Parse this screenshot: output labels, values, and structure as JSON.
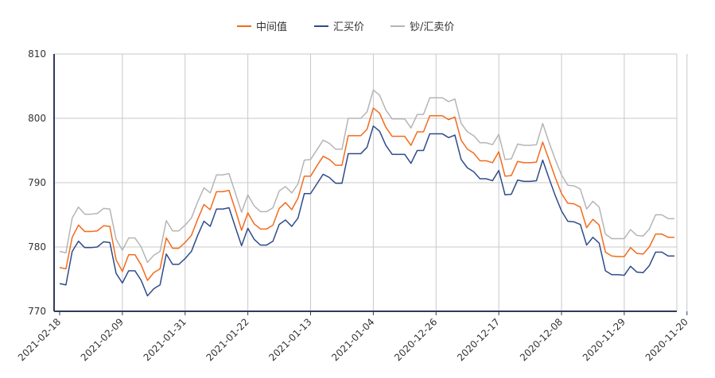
{
  "chart_data": {
    "type": "line",
    "title": "",
    "xlabel": "",
    "ylabel": "",
    "ylim": [
      770,
      810
    ],
    "y_ticks": [
      770,
      780,
      790,
      800,
      810
    ],
    "grid": true,
    "legend_position": "top-center",
    "x_tick_labels": [
      "2021-02-18",
      "2021-02-09",
      "2021-01-31",
      "2021-01-22",
      "2021-01-13",
      "2021-01-04",
      "2020-12-26",
      "2020-12-17",
      "2020-12-08",
      "2020-11-29",
      "2020-11-20"
    ],
    "x_tick_every": 10,
    "series": [
      {
        "name": "中间值",
        "color": "#f26b1d",
        "values": [
          776.8,
          776.6,
          781.5,
          783.4,
          782.4,
          782.4,
          782.5,
          783.3,
          783.2,
          778.0,
          776.2,
          778.8,
          778.8,
          777.2,
          774.8,
          776.0,
          776.6,
          781.4,
          779.8,
          779.8,
          780.7,
          781.8,
          784.3,
          786.6,
          785.8,
          788.6,
          788.6,
          788.8,
          785.8,
          782.6,
          785.3,
          783.6,
          782.8,
          782.8,
          783.4,
          786.0,
          786.9,
          785.8,
          787.6,
          791.0,
          791.0,
          792.6,
          794.1,
          793.6,
          792.7,
          792.7,
          797.3,
          797.3,
          797.3,
          798.3,
          801.6,
          800.8,
          798.6,
          797.2,
          797.2,
          797.2,
          795.8,
          797.9,
          797.9,
          800.4,
          800.4,
          800.4,
          799.8,
          800.2,
          796.6,
          795.2,
          794.6,
          793.4,
          793.4,
          793.1,
          794.8,
          791.0,
          791.1,
          793.3,
          793.1,
          793.1,
          793.2,
          796.3,
          793.6,
          790.8,
          788.3,
          786.8,
          786.7,
          786.2,
          783.0,
          784.3,
          783.4,
          779.2,
          778.6,
          778.5,
          778.5,
          779.9,
          779.0,
          778.9,
          780.0,
          782.0,
          782.0,
          781.5,
          781.5
        ]
      },
      {
        "name": "汇买价",
        "color": "#2f4b8a",
        "values": [
          774.3,
          774.1,
          779.3,
          780.9,
          779.9,
          779.9,
          780.0,
          780.8,
          780.7,
          775.9,
          774.4,
          776.3,
          776.3,
          774.8,
          772.4,
          773.5,
          774.1,
          778.9,
          777.3,
          777.3,
          778.2,
          779.3,
          781.8,
          784.0,
          783.2,
          785.9,
          785.9,
          786.1,
          783.1,
          780.2,
          782.9,
          781.2,
          780.3,
          780.3,
          780.9,
          783.5,
          784.2,
          783.2,
          784.5,
          788.3,
          788.3,
          789.8,
          791.3,
          790.8,
          789.9,
          789.9,
          794.5,
          794.5,
          794.5,
          795.5,
          798.8,
          798.0,
          795.8,
          794.4,
          794.4,
          794.4,
          793.0,
          795.0,
          795.0,
          797.6,
          797.6,
          797.6,
          797.0,
          797.4,
          793.6,
          792.3,
          791.7,
          790.6,
          790.6,
          790.3,
          791.9,
          788.1,
          788.2,
          790.4,
          790.2,
          790.2,
          790.3,
          793.5,
          790.7,
          788.0,
          785.6,
          784.0,
          783.9,
          783.5,
          780.3,
          781.5,
          780.6,
          776.3,
          775.7,
          775.7,
          775.6,
          777.0,
          776.1,
          776.0,
          777.1,
          779.2,
          779.2,
          778.6,
          778.6
        ]
      },
      {
        "name": "钞/汇卖价",
        "color": "#b5b5b5",
        "values": [
          779.3,
          779.1,
          784.5,
          786.2,
          785.1,
          785.1,
          785.2,
          786.0,
          785.9,
          781.2,
          779.5,
          781.4,
          781.4,
          780.0,
          777.6,
          778.7,
          779.3,
          784.1,
          782.5,
          782.5,
          783.4,
          784.5,
          787.0,
          789.2,
          788.4,
          791.2,
          791.2,
          791.4,
          788.4,
          785.4,
          788.1,
          786.4,
          785.5,
          785.5,
          786.1,
          788.7,
          789.4,
          788.4,
          789.8,
          793.5,
          793.6,
          795.1,
          796.6,
          796.1,
          795.2,
          795.2,
          800.0,
          800.0,
          800.0,
          801.0,
          804.4,
          803.6,
          801.3,
          799.9,
          799.9,
          799.9,
          798.5,
          800.6,
          800.6,
          803.2,
          803.2,
          803.2,
          802.6,
          803.0,
          799.2,
          797.9,
          797.3,
          796.2,
          796.2,
          795.9,
          797.5,
          793.6,
          793.7,
          796.0,
          795.8,
          795.8,
          795.9,
          799.2,
          796.3,
          793.6,
          791.2,
          789.6,
          789.5,
          789.0,
          785.9,
          787.1,
          786.2,
          782.0,
          781.3,
          781.3,
          781.3,
          782.7,
          781.8,
          781.7,
          782.8,
          785.0,
          785.0,
          784.4,
          784.4
        ]
      }
    ]
  }
}
